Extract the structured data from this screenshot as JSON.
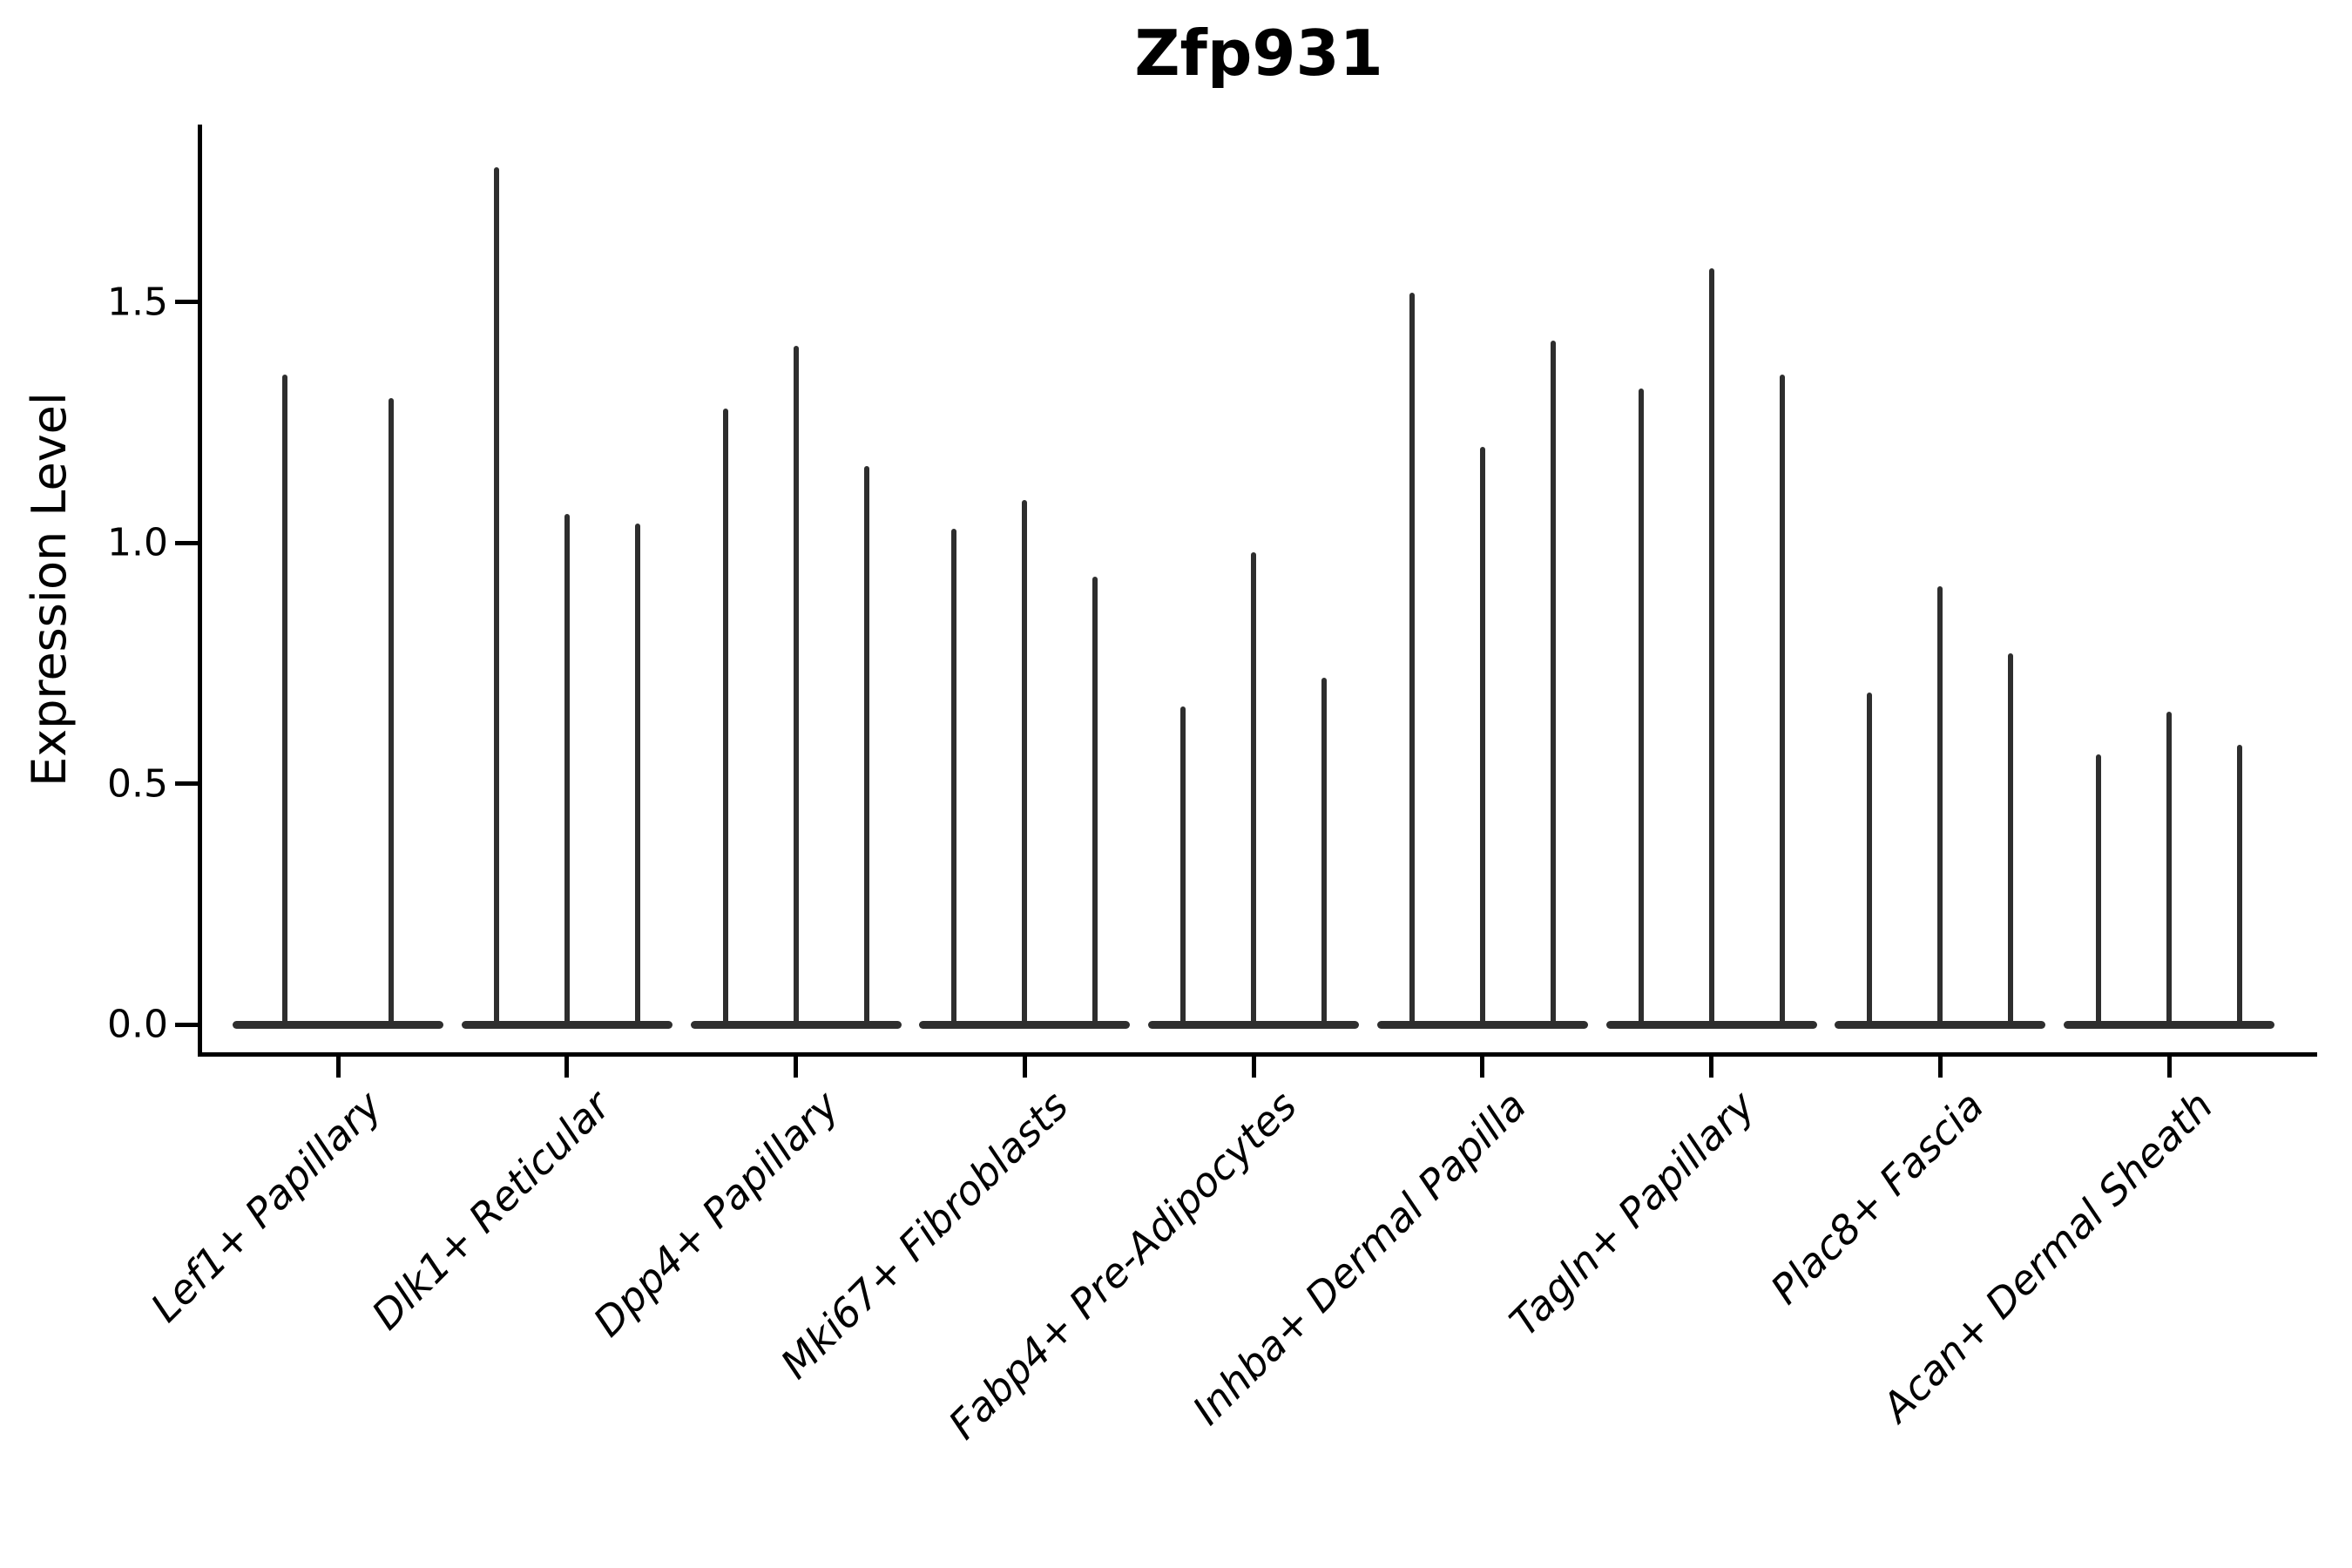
{
  "chart_data": {
    "type": "violin",
    "title": "Zfp931",
    "xlabel": "",
    "ylabel": "Expression Level",
    "ylim": [
      -0.06,
      1.87
    ],
    "yticks": [
      0.0,
      0.5,
      1.0,
      1.5
    ],
    "ytick_labels": [
      "0.0",
      "0.5",
      "1.0",
      "1.5"
    ],
    "grid": false,
    "legend": false,
    "categories": [
      "Lef1+ Papillary",
      "Dlk1+ Reticular",
      "Dpp4+ Papillary",
      "Mki67+ Fibroblasts",
      "Fabp4+ Pre-Adipocytes",
      "Inhba+ Dermal Papilla",
      "Tagln+ Papillary",
      "Plac8+ Fascia",
      "Acan+ Dermal Sheath"
    ],
    "groups": [
      {
        "category": "Lef1+ Papillary",
        "spike_tips": [
          1.35,
          1.3
        ]
      },
      {
        "category": "Dlk1+ Reticular",
        "spike_tips": [
          1.78,
          1.06,
          1.04
        ]
      },
      {
        "category": "Dpp4+ Papillary",
        "spike_tips": [
          1.28,
          1.41,
          1.16
        ]
      },
      {
        "category": "Mki67+ Fibroblasts",
        "spike_tips": [
          1.03,
          1.09,
          0.93
        ]
      },
      {
        "category": "Fabp4+ Pre-Adipocytes",
        "spike_tips": [
          0.66,
          0.98,
          0.72
        ]
      },
      {
        "category": "Inhba+ Dermal Papilla",
        "spike_tips": [
          1.52,
          1.2,
          1.42
        ]
      },
      {
        "category": "Tagln+ Papillary",
        "spike_tips": [
          1.32,
          1.57,
          1.35
        ]
      },
      {
        "category": "Plac8+ Fascia",
        "spike_tips": [
          0.69,
          0.91,
          0.77
        ]
      },
      {
        "category": "Acan+ Dermal Sheath",
        "spike_tips": [
          0.56,
          0.65,
          0.58
        ]
      }
    ],
    "colors": {
      "violin": "#2e2e2e",
      "axis": "#000000",
      "text": "#000000",
      "background": "#ffffff"
    }
  }
}
